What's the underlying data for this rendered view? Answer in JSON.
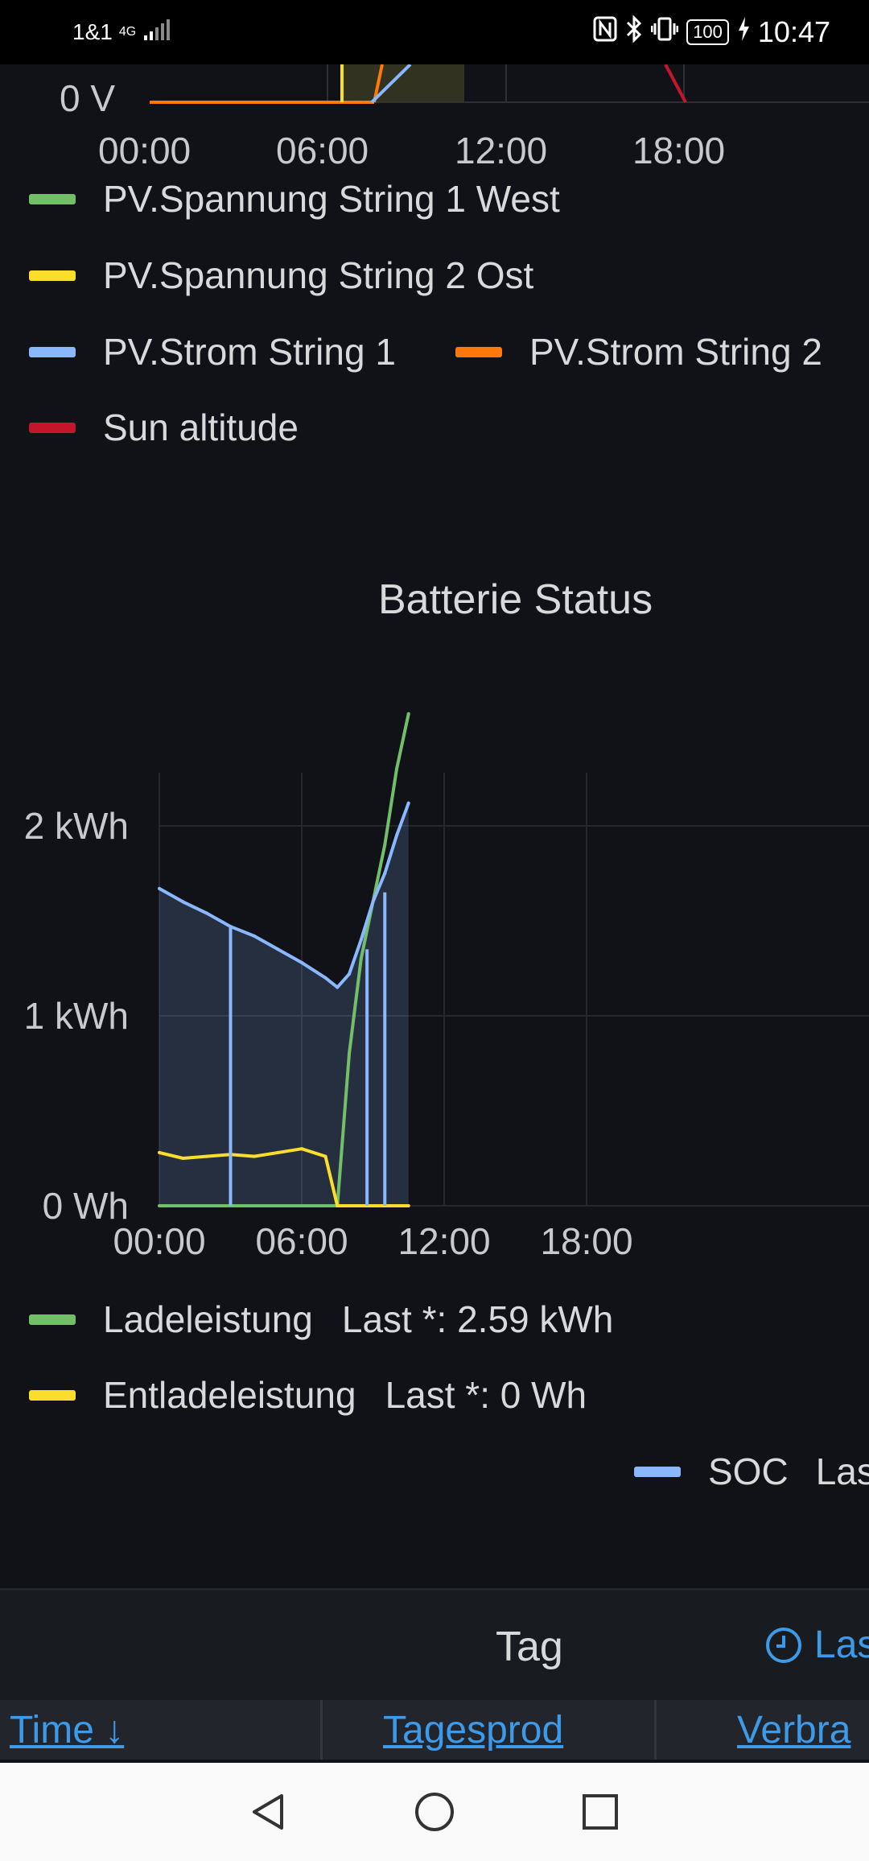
{
  "status_bar": {
    "carrier": "1&1",
    "network": "4G",
    "battery": "100",
    "time": "10:47",
    "icons": [
      "nfc-icon",
      "bluetooth-icon",
      "vibrate-icon",
      "battery-icon",
      "charging-icon"
    ]
  },
  "pv_chart": {
    "y_tick": "0 V",
    "x_ticks": [
      "00:00",
      "06:00",
      "12:00",
      "18:00"
    ],
    "legend": [
      {
        "label": "PV.Spannung String 1 West",
        "color": "#73bf69"
      },
      {
        "label": "PV.Spannung String 2 Ost",
        "color": "#fade2a"
      },
      {
        "label": "PV.Strom String 1",
        "color": "#8ab8ff"
      },
      {
        "label": "PV.Strom String 2",
        "color": "#ff780a"
      },
      {
        "label": "Sun altitude",
        "color": "#c4162a"
      }
    ]
  },
  "chart_data": {
    "type": "line",
    "title": "Batterie Status",
    "x": [
      "00:00",
      "01:00",
      "02:00",
      "03:00",
      "04:00",
      "05:00",
      "06:00",
      "07:00",
      "07:30",
      "08:00",
      "08:30",
      "09:00",
      "09:30",
      "10:00",
      "10:30"
    ],
    "y_ticks": [
      "0 Wh",
      "1 kWh",
      "2 kWh"
    ],
    "x_ticks": [
      "00:00",
      "06:00",
      "12:00",
      "18:00"
    ],
    "ylim": [
      0,
      2.6
    ],
    "unit": "kWh",
    "series": [
      {
        "name": "Ladeleistung",
        "color": "#73bf69",
        "values": [
          0,
          0,
          0,
          0,
          0,
          0,
          0,
          0,
          0,
          0.8,
          1.3,
          1.6,
          1.9,
          2.3,
          2.59
        ]
      },
      {
        "name": "Entladeleistung",
        "color": "#fade2a",
        "values": [
          0.28,
          0.25,
          0.26,
          0.27,
          0.26,
          0.28,
          0.3,
          0.26,
          0,
          0,
          0,
          0,
          0,
          0,
          0
        ]
      },
      {
        "name": "SOC",
        "color": "#8ab8ff",
        "values": [
          1.67,
          1.6,
          1.54,
          1.47,
          1.42,
          1.35,
          1.28,
          1.2,
          1.15,
          1.22,
          1.4,
          1.6,
          1.75,
          1.95,
          2.12
        ]
      }
    ],
    "grid": true
  },
  "battery_legend": [
    {
      "label": "Ladeleistung",
      "stat": "Last *: 2.59 kWh",
      "color": "#73bf69"
    },
    {
      "label": "Entladeleistung",
      "stat": "Last *: 0 Wh",
      "color": "#fade2a"
    },
    {
      "label": "SOC",
      "stat": "Las",
      "color": "#8ab8ff"
    }
  ],
  "tag_panel": {
    "title": "Tag",
    "time_link": "Las",
    "columns": [
      "Time ↓",
      "Tagesprod",
      "Verbra"
    ]
  },
  "nav": [
    "back-icon",
    "home-icon",
    "recents-icon"
  ]
}
